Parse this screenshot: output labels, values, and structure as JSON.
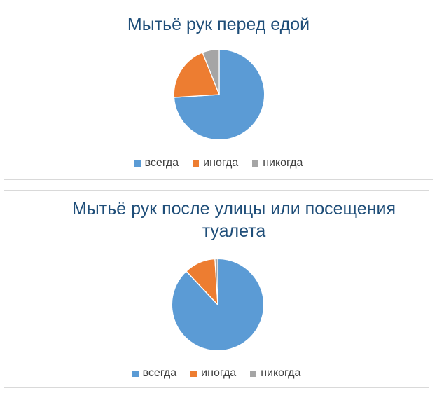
{
  "chart_data": [
    {
      "type": "pie",
      "title": "Мытьё рук перед едой",
      "categories": [
        "всегда",
        "иногда",
        "никогда"
      ],
      "values": [
        74,
        20,
        6
      ],
      "colors": [
        "#5b9bd5",
        "#ed7d31",
        "#a5a5a5"
      ],
      "legend_position": "bottom"
    },
    {
      "type": "pie",
      "title": "Мытьё рук после улицы или посещения туалета",
      "categories": [
        "всегда",
        "иногда",
        "никогда"
      ],
      "values": [
        88,
        11,
        1
      ],
      "colors": [
        "#5b9bd5",
        "#ed7d31",
        "#a5a5a5"
      ],
      "legend_position": "bottom"
    }
  ]
}
